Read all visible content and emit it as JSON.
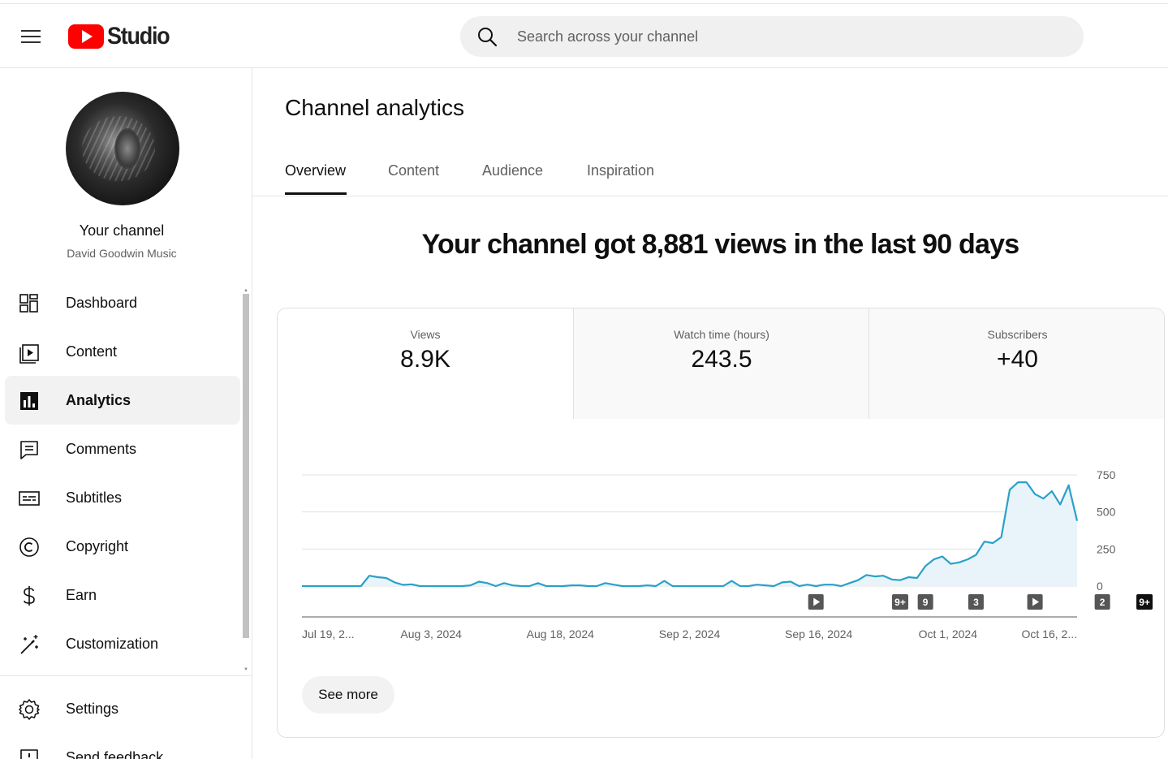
{
  "header": {
    "logo_text": "Studio",
    "search_placeholder": "Search across your channel"
  },
  "sidebar": {
    "channel_title": "Your channel",
    "channel_name": "David Goodwin Music",
    "items": [
      {
        "label": "Dashboard",
        "icon": "dashboard-icon"
      },
      {
        "label": "Content",
        "icon": "content-icon"
      },
      {
        "label": "Analytics",
        "icon": "analytics-icon",
        "active": true
      },
      {
        "label": "Comments",
        "icon": "comments-icon"
      },
      {
        "label": "Subtitles",
        "icon": "subtitles-icon"
      },
      {
        "label": "Copyright",
        "icon": "copyright-icon"
      },
      {
        "label": "Earn",
        "icon": "earn-icon"
      },
      {
        "label": "Customization",
        "icon": "customization-icon"
      }
    ],
    "bottom_items": [
      {
        "label": "Settings",
        "icon": "settings-icon"
      },
      {
        "label": "Send feedback",
        "icon": "feedback-icon"
      }
    ]
  },
  "main": {
    "title": "Channel analytics",
    "tabs": [
      {
        "label": "Overview",
        "active": true
      },
      {
        "label": "Content"
      },
      {
        "label": "Audience"
      },
      {
        "label": "Inspiration"
      }
    ],
    "headline": "Your channel got 8,881 views in the last 90 days",
    "metrics": [
      {
        "label": "Views",
        "value": "8.9K",
        "selected": true
      },
      {
        "label": "Watch time (hours)",
        "value": "243.5"
      },
      {
        "label": "Subscribers",
        "value": "+40"
      }
    ],
    "see_more": "See more"
  },
  "colors": {
    "brand_red": "#ff0000",
    "line": "#2aa0c9",
    "area_fill": "#e8f4f9",
    "grid": "#e0e0e0"
  },
  "chart_data": {
    "type": "area",
    "x_tick_labels": [
      "Jul 19, 2...",
      "Aug 3, 2024",
      "Aug 18, 2024",
      "Sep 2, 2024",
      "Sep 16, 2024",
      "Oct 1, 2024",
      "Oct 16, 2..."
    ],
    "y_ticks": [
      0,
      250,
      500,
      750
    ],
    "ylim": [
      0,
      750
    ],
    "grid": true,
    "series": [
      {
        "values": [
          0,
          0,
          0,
          0,
          0,
          0,
          0,
          0,
          70,
          60,
          55,
          25,
          8,
          12,
          0,
          0,
          0,
          0,
          0,
          0,
          5,
          30,
          20,
          0,
          20,
          5,
          0,
          0,
          20,
          0,
          0,
          0,
          5,
          5,
          0,
          0,
          20,
          10,
          0,
          0,
          0,
          5,
          0,
          35,
          0,
          0,
          0,
          0,
          0,
          0,
          0,
          35,
          0,
          0,
          10,
          5,
          0,
          25,
          30,
          0,
          10,
          0,
          10,
          10,
          0,
          20,
          40,
          75,
          65,
          70,
          45,
          40,
          60,
          55,
          135,
          180,
          200,
          150,
          160,
          180,
          210,
          300,
          290,
          330,
          650,
          700,
          700,
          620,
          590,
          640,
          550,
          680,
          440
        ]
      }
    ],
    "annotations": [
      {
        "label": "",
        "kind": "play-icon",
        "index": 61
      },
      {
        "label": "9+",
        "index": 71
      },
      {
        "label": "9",
        "index": 74
      },
      {
        "label": "3",
        "index": 80
      },
      {
        "label": "",
        "kind": "play-icon",
        "index": 87
      },
      {
        "label": "2",
        "index": 95
      },
      {
        "label": "9+",
        "index": 100,
        "dark": true
      }
    ]
  }
}
